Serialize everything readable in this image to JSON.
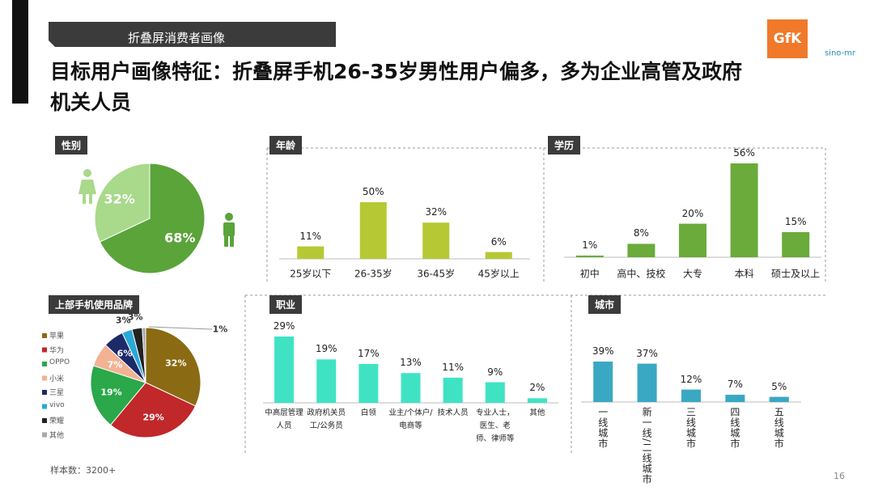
{
  "slide": {
    "tag": "折叠屏消费者画像",
    "title": "目标用户画像特征：折叠屏手机26-35岁男性用户偏多，多为企业高管及政府机关人员",
    "sample": "样本数：3200+",
    "page": "16",
    "logos": [
      "GfK",
      "sino-mr"
    ]
  },
  "chart_data": [
    {
      "type": "pie",
      "title": "性别",
      "values": [
        68,
        32
      ],
      "value_labels": [
        "68%",
        "32%"
      ],
      "colors": [
        "#5aa43a",
        "#a9d98b"
      ]
    },
    {
      "type": "bar",
      "title": "年龄",
      "categories": [
        "25岁以下",
        "26-35岁",
        "36-45岁",
        "45岁以上"
      ],
      "values": [
        11,
        50,
        32,
        6
      ],
      "value_labels": [
        "11%",
        "50%",
        "32%",
        "6%"
      ],
      "color": "#b6c934"
    },
    {
      "type": "bar",
      "title": "学历",
      "categories": [
        "初中",
        "高中、技校",
        "大专",
        "本科",
        "硕士及以上"
      ],
      "values": [
        1,
        8,
        20,
        56,
        15
      ],
      "value_labels": [
        "1%",
        "8%",
        "20%",
        "56%",
        "15%"
      ],
      "color": "#6aab3c"
    },
    {
      "type": "pie",
      "title": "上部手机使用品牌",
      "categories": [
        "苹果",
        "华为",
        "OPPO",
        "小米",
        "三星",
        "vivo",
        "荣耀",
        "其他"
      ],
      "values": [
        32,
        29,
        19,
        7,
        6,
        3,
        3,
        1
      ],
      "value_labels": [
        "32%",
        "29%",
        "19%",
        "7%",
        "6%",
        "3%",
        "3%",
        "1%"
      ],
      "colors": [
        "#8a6b14",
        "#c0282a",
        "#2aa84a",
        "#f2b293",
        "#1c2a6a",
        "#2aa8d8",
        "#222222",
        "#a8a8a8"
      ]
    },
    {
      "type": "bar",
      "title": "职业",
      "categories": [
        "中高层管理人员",
        "政府机关员工/公务员",
        "白领",
        "业主/个体户/电商等",
        "技术人员",
        "专业人士，医生、老师、律师等",
        "其他"
      ],
      "values": [
        29,
        19,
        17,
        13,
        11,
        9,
        2
      ],
      "value_labels": [
        "29%",
        "19%",
        "17%",
        "13%",
        "11%",
        "9%",
        "2%"
      ],
      "color": "#3fe3c3"
    },
    {
      "type": "bar",
      "title": "城市",
      "categories": [
        "一线城市",
        "新一线/二线城市",
        "三线城市",
        "四线城市",
        "五线城市"
      ],
      "values": [
        39,
        37,
        12,
        7,
        5
      ],
      "value_labels": [
        "39%",
        "37%",
        "12%",
        "7%",
        "5%"
      ],
      "color": "#3aa8c2",
      "vertical_labels": true
    }
  ]
}
